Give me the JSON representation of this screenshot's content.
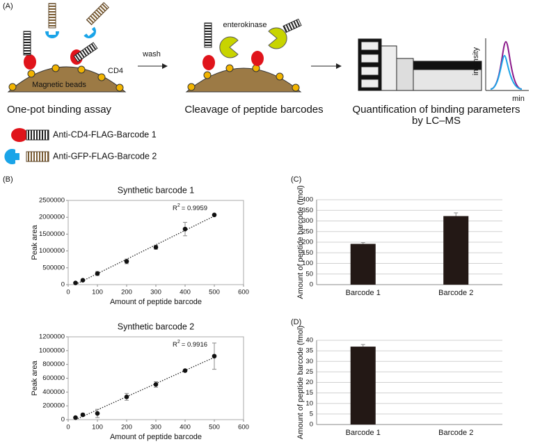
{
  "panel_a": {
    "label": "(A)",
    "wash": "wash",
    "enterokinase": "enterokinase",
    "cd4": "CD4",
    "beads": "Magnetic beads",
    "step1": "One-pot binding assay",
    "step2": "Cleavage of peptide barcodes",
    "step3": [
      "Quantification of binding parameters",
      "by LC–MS"
    ],
    "intensity": "intensity",
    "min": "min",
    "legend": [
      "Anti-CD4-FLAG-Barcode 1",
      "Anti-GFP-FLAG-Barcode 2"
    ]
  },
  "chart_data": [
    {
      "type": "scatter",
      "panel": "(B)",
      "title": "Synthetic barcode 1",
      "xlabel": "Amount of peptide barcode",
      "ylabel": "Peak area",
      "annotation": {
        "base": "R",
        "sup": "2",
        "text": "= 0.9959"
      },
      "x": [
        25,
        50,
        100,
        200,
        300,
        400,
        500
      ],
      "values": [
        50000,
        130000,
        330000,
        690000,
        1110000,
        1650000,
        2070000
      ],
      "errors": [
        20000,
        20000,
        60000,
        70000,
        60000,
        200000,
        20000
      ],
      "xlim": [
        0,
        600
      ],
      "xticks": [
        0,
        100,
        200,
        300,
        400,
        500,
        600
      ],
      "ylim": [
        0,
        2500000
      ],
      "yticks": [
        0,
        500000,
        1000000,
        1500000,
        2000000,
        2500000
      ],
      "grid": false,
      "color": "#111111"
    },
    {
      "type": "scatter",
      "title": "Synthetic barcode 2",
      "xlabel": "Amount of peptide barcode",
      "ylabel": "Peak area",
      "annotation": {
        "base": "R",
        "sup": "2",
        "text": "= 0.9916"
      },
      "x": [
        25,
        50,
        100,
        200,
        300,
        400,
        500
      ],
      "values": [
        30000,
        70000,
        90000,
        330000,
        510000,
        710000,
        920000
      ],
      "errors": [
        10000,
        20000,
        60000,
        50000,
        40000,
        15000,
        190000
      ],
      "xlim": [
        0,
        600
      ],
      "xticks": [
        0,
        100,
        200,
        300,
        400,
        500,
        600
      ],
      "ylim": [
        0,
        1200000
      ],
      "yticks": [
        0,
        200000,
        400000,
        600000,
        800000,
        1000000,
        1200000
      ],
      "grid": false,
      "color": "#111111"
    },
    {
      "type": "bar",
      "panel": "(C)",
      "ylabel": "Amount of peptide barcode (fmol)",
      "categories": [
        "Barcode 1",
        "Barcode 2"
      ],
      "values": [
        192,
        323
      ],
      "errors": [
        6,
        15
      ],
      "ylim": [
        0,
        400
      ],
      "yticks": [
        0,
        50,
        100,
        150,
        200,
        250,
        300,
        350,
        400
      ],
      "grid": true,
      "color": "#231815"
    },
    {
      "type": "bar",
      "panel": "(D)",
      "ylabel": "Amount of peptide barcode (fmol)",
      "categories": [
        "Barcode 1",
        "Barcode 2"
      ],
      "values": [
        37,
        0
      ],
      "errors": [
        1,
        null
      ],
      "ylim": [
        0,
        40
      ],
      "yticks": [
        0,
        5,
        10,
        15,
        20,
        25,
        30,
        35,
        40
      ],
      "grid": true,
      "color": "#231815"
    }
  ]
}
